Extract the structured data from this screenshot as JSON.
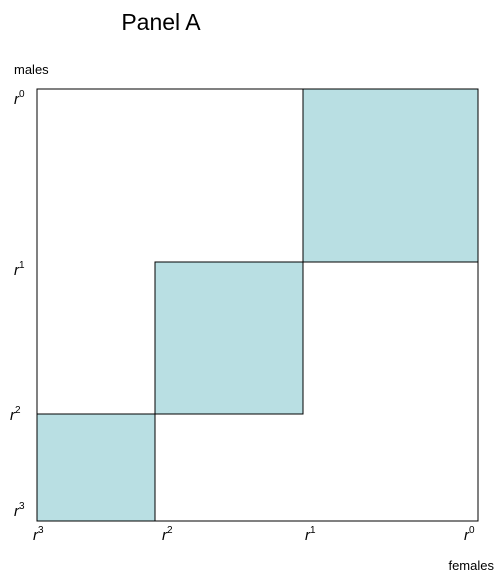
{
  "title": "Panel A",
  "y_axis_label": "males",
  "x_axis_label": "females",
  "y_ticks": [
    {
      "base": "r",
      "sup": "0"
    },
    {
      "base": "r",
      "sup": "1"
    },
    {
      "base": "r",
      "sup": "2"
    },
    {
      "base": "r",
      "sup": "3"
    }
  ],
  "x_ticks": [
    {
      "base": "r",
      "sup": "3"
    },
    {
      "base": "r",
      "sup": "2"
    },
    {
      "base": "r",
      "sup": "1"
    },
    {
      "base": "r",
      "sup": "0"
    }
  ]
}
